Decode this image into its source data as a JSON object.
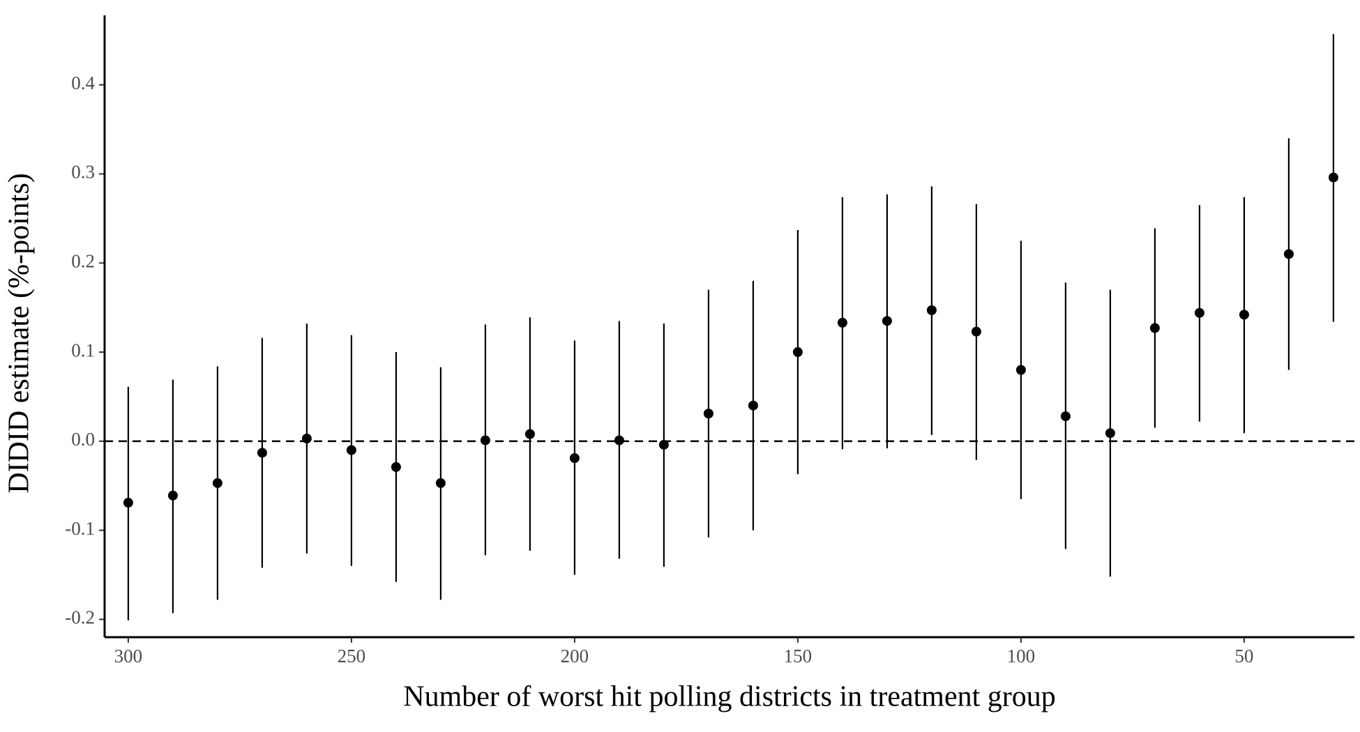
{
  "chart_data": {
    "type": "errorbar",
    "xlabel": "Number of worst hit polling districts in treatment group",
    "ylabel": "DIDID estimate (%-points)",
    "x": [
      300,
      290,
      280,
      270,
      260,
      250,
      240,
      230,
      220,
      210,
      200,
      190,
      180,
      170,
      160,
      150,
      140,
      130,
      120,
      110,
      100,
      90,
      80,
      70,
      60,
      50,
      40,
      30
    ],
    "values": [
      -0.069,
      -0.061,
      -0.047,
      -0.013,
      0.003,
      -0.01,
      -0.029,
      -0.047,
      0.001,
      0.008,
      -0.019,
      0.001,
      -0.004,
      0.031,
      0.04,
      0.1,
      0.133,
      0.135,
      0.147,
      0.123,
      0.08,
      0.028,
      0.009,
      0.127,
      0.144,
      0.142,
      0.21,
      0.296
    ],
    "ci_lower": [
      -0.201,
      -0.193,
      -0.178,
      -0.142,
      -0.126,
      -0.14,
      -0.158,
      -0.178,
      -0.128,
      -0.123,
      -0.15,
      -0.132,
      -0.141,
      -0.108,
      -0.1,
      -0.037,
      -0.009,
      -0.008,
      0.007,
      -0.021,
      -0.065,
      -0.121,
      -0.152,
      0.015,
      0.022,
      0.009,
      0.08,
      0.134
    ],
    "ci_upper": [
      0.061,
      0.069,
      0.084,
      0.116,
      0.132,
      0.119,
      0.1,
      0.083,
      0.131,
      0.139,
      0.113,
      0.135,
      0.132,
      0.17,
      0.18,
      0.237,
      0.274,
      0.277,
      0.286,
      0.266,
      0.225,
      0.178,
      0.17,
      0.239,
      0.265,
      0.274,
      0.34,
      0.457
    ],
    "color": "#000000",
    "xlim": [
      305.3,
      25.3
    ],
    "ylim": [
      -0.22,
      0.478
    ],
    "xticks": [
      300,
      250,
      200,
      150,
      100,
      50
    ],
    "yticks": [
      -0.2,
      -0.1,
      {
        "value": 0,
        "label": "0.0"
      },
      0.1,
      0.2,
      0.3,
      0.4
    ],
    "reference_line": 0,
    "grid": false
  }
}
